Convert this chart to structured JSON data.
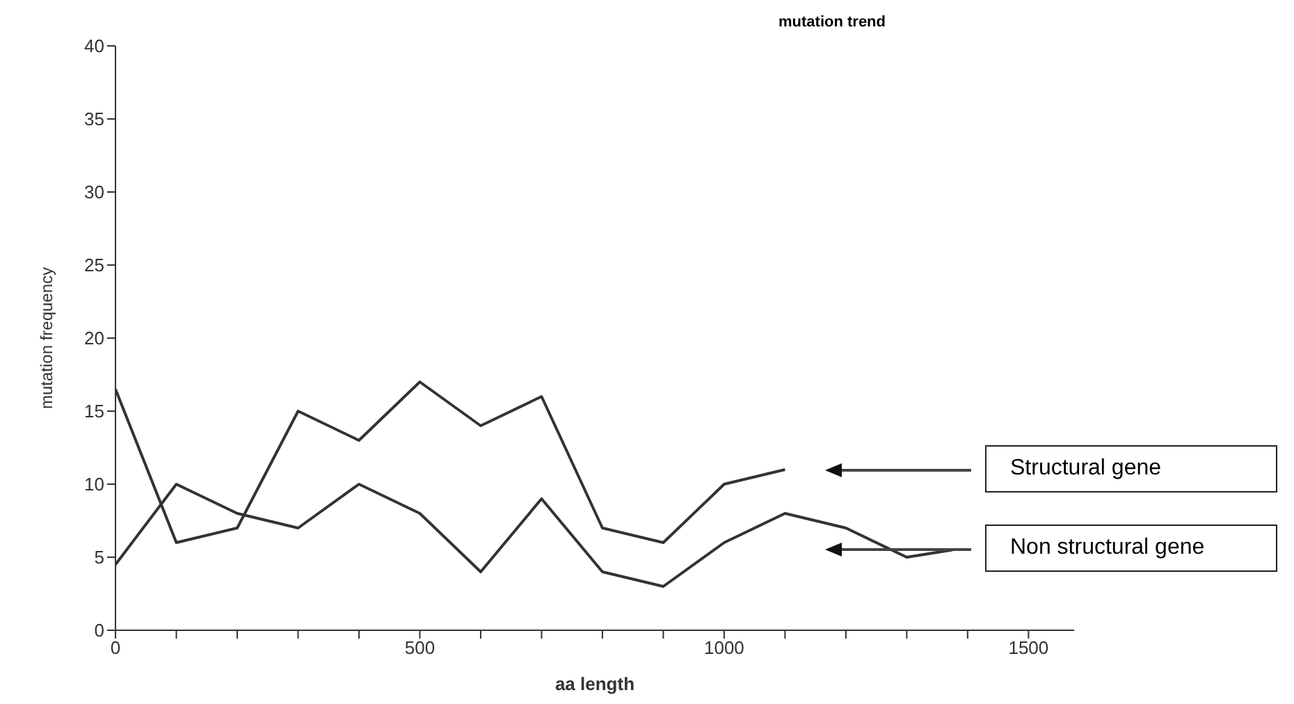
{
  "chart_data": {
    "type": "line",
    "title": "mutation trend",
    "xlabel": "aa length",
    "ylabel": "mutation frequency",
    "xlim": [
      0,
      1575
    ],
    "ylim": [
      0,
      40
    ],
    "xticks": [
      0,
      {
        "value": 100,
        "label": null
      },
      {
        "value": 200,
        "label": null
      },
      {
        "value": 300,
        "label": null
      },
      {
        "value": 400,
        "label": null
      },
      500,
      {
        "value": 600,
        "label": null
      },
      {
        "value": 700,
        "label": null
      },
      {
        "value": 800,
        "label": null
      },
      {
        "value": 900,
        "label": null
      },
      1000,
      {
        "value": 1100,
        "label": null
      },
      {
        "value": 1200,
        "label": null
      },
      {
        "value": 1300,
        "label": null
      },
      {
        "value": 1400,
        "label": null
      },
      1500
    ],
    "yticks": [
      0,
      5,
      10,
      15,
      20,
      25,
      30,
      35,
      40
    ],
    "grid": false,
    "marker": "none",
    "line_style": "solid",
    "series": [
      {
        "name": "Structural gene",
        "color": "#333333",
        "x": [
          0,
          100,
          200,
          300,
          400,
          500,
          600,
          700,
          800,
          900,
          1000,
          1100
        ],
        "values": [
          16.5,
          6,
          7,
          15,
          13,
          17,
          14,
          16,
          7,
          6,
          10,
          11
        ]
      },
      {
        "name": "Non structural gene",
        "color": "#333333",
        "x": [
          0,
          100,
          200,
          300,
          400,
          500,
          600,
          700,
          800,
          900,
          1000,
          1100,
          1200,
          1300,
          1375
        ],
        "values": [
          4.5,
          10,
          8,
          7,
          10,
          8,
          4,
          9,
          4,
          3,
          6,
          8,
          7,
          5,
          5.5
        ]
      }
    ]
  }
}
